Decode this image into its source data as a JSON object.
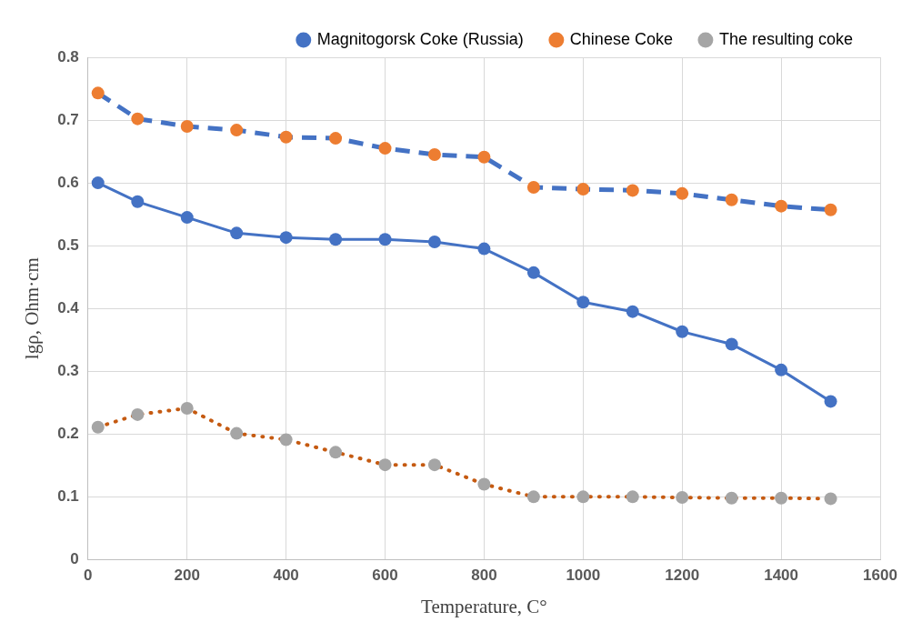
{
  "chart_data": {
    "type": "line",
    "xlabel": "Temperature, C°",
    "ylabel": "lgρ, Ohm·cm",
    "x": [
      20,
      100,
      200,
      300,
      400,
      500,
      600,
      700,
      800,
      900,
      1000,
      1100,
      1200,
      1300,
      1400,
      1500
    ],
    "series": [
      {
        "name": "Magnitogorsk Coke (Russia)",
        "color": "#4472c4",
        "line_style": "solid",
        "values": [
          0.6,
          0.57,
          0.545,
          0.52,
          0.513,
          0.51,
          0.51,
          0.506,
          0.495,
          0.457,
          0.41,
          0.395,
          0.363,
          0.343,
          0.302,
          0.252
        ]
      },
      {
        "name": "Chinese Coke",
        "color": "#4472c4",
        "colors": [
          "#ed7d31",
          "#ed7d31",
          "#ed7d31",
          "#ed7d31",
          "#ed7d31",
          "#ed7d31",
          "#ed7d31",
          "#ed7d31",
          "#ed7d31",
          "#ed7d31",
          "#ed7d31",
          "#ed7d31",
          "#ed7d31",
          "#ed7d31",
          "#ed7d31",
          "#ed7d31"
        ],
        "line_style": "dashed",
        "values": [
          0.743,
          0.702,
          0.69,
          0.684,
          0.673,
          0.671,
          0.655,
          0.645,
          0.641,
          0.593,
          0.59,
          0.588,
          0.583,
          0.573,
          0.563,
          0.557
        ]
      },
      {
        "name": "The resulting coke",
        "color": "#c55a11",
        "colors": [
          "#a5a5a5",
          "#a5a5a5",
          "#a5a5a5",
          "#a5a5a5",
          "#a5a5a5",
          "#a5a5a5",
          "#a5a5a5",
          "#a5a5a5",
          "#a5a5a5",
          "#a5a5a5",
          "#a5a5a5",
          "#a5a5a5",
          "#a5a5a5",
          "#a5a5a5",
          "#a5a5a5",
          "#a5a5a5"
        ],
        "line_style": "dotted",
        "values": [
          0.211,
          0.231,
          0.241,
          0.201,
          0.191,
          0.171,
          0.151,
          0.151,
          0.12,
          0.1,
          0.1,
          0.1,
          0.099,
          0.098,
          0.098,
          0.097
        ]
      }
    ],
    "xlim": [
      0,
      1600
    ],
    "xticks": [
      0,
      200,
      400,
      600,
      800,
      1000,
      1200,
      1400,
      1600
    ],
    "ylim": [
      0,
      0.8
    ],
    "yticks": [
      0,
      0.1,
      0.2,
      0.3,
      0.4,
      0.5,
      0.6,
      0.7,
      0.8
    ],
    "grid": true,
    "legend": "top",
    "marker": "circle"
  }
}
